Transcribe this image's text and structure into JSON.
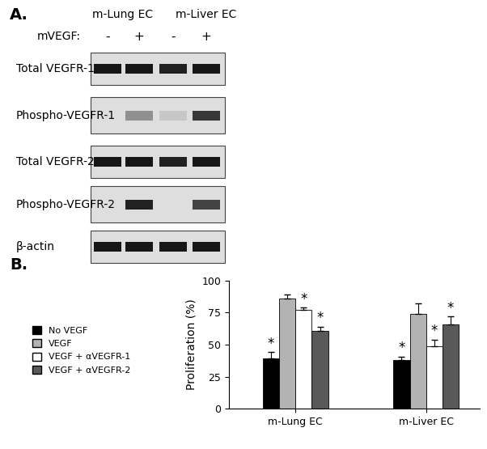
{
  "panel_a": {
    "panel_label": "A.",
    "groups": [
      "m-Lung EC",
      "m-Liver EC"
    ],
    "treatment": {
      "label": "mVEGF:",
      "signs": [
        "-",
        "+",
        "-",
        "+"
      ]
    },
    "rows": [
      {
        "label": "Total VEGFR-1",
        "intensity": [
          0.9,
          0.9,
          0.85,
          0.9
        ]
      },
      {
        "label": "Phospho-VEGFR-1",
        "intensity": [
          0.0,
          0.35,
          0.1,
          0.75
        ]
      },
      {
        "label": "Total VEGFR-2",
        "intensity": [
          0.9,
          0.9,
          0.85,
          0.9
        ]
      },
      {
        "label": "Phospho-VEGFR-2",
        "intensity": [
          0.0,
          0.85,
          0.0,
          0.7
        ]
      },
      {
        "label": "β-actin",
        "intensity": [
          0.9,
          0.9,
          0.9,
          0.9
        ]
      }
    ]
  },
  "chart_data": {
    "type": "bar",
    "panel_label": "B.",
    "y_label": "Proliferation (%)",
    "categories": [
      "m-Lung EC",
      "m-Liver EC"
    ],
    "series": [
      {
        "name": "No VEGF",
        "color": "#000000",
        "values": [
          39,
          38
        ],
        "errors": [
          5,
          2.5
        ],
        "annotations": [
          "*",
          "*"
        ]
      },
      {
        "name": "VEGF",
        "color": "#b3b3b3",
        "values": [
          86,
          74
        ],
        "errors": [
          3,
          8
        ],
        "annotations": [
          null,
          null
        ]
      },
      {
        "name": "VEGF + αVEGFR-1",
        "color": "#ffffff",
        "values": [
          77,
          49
        ],
        "errors": [
          2,
          5
        ],
        "annotations": [
          "*",
          "*"
        ]
      },
      {
        "name": "VEGF + αVEGFR-2",
        "color": "#595959",
        "values": [
          61,
          66
        ],
        "errors": [
          3,
          6
        ],
        "annotations": [
          "*",
          "*"
        ]
      }
    ],
    "ylim": [
      0,
      100
    ],
    "yticks": [
      0,
      25,
      50,
      75,
      100
    ],
    "legend": "left",
    "grid": false
  }
}
